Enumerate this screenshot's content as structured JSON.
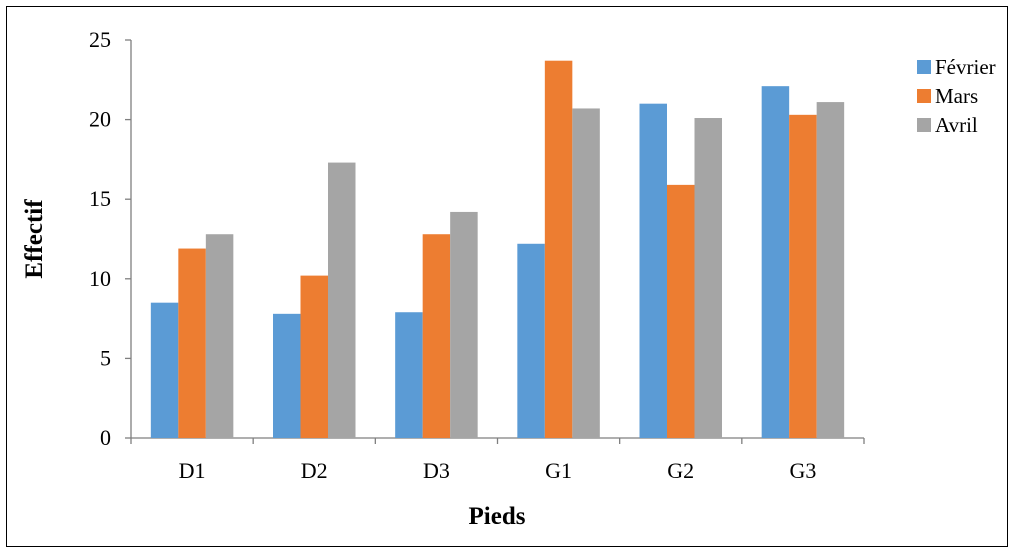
{
  "chart_data": {
    "type": "bar",
    "title": "",
    "xlabel": "Pieds",
    "ylabel": "Effectif",
    "categories": [
      "D1",
      "D2",
      "D3",
      "G1",
      "G2",
      "G3"
    ],
    "series": [
      {
        "name": "Février",
        "color": "#5b9bd5",
        "values": [
          8.5,
          7.8,
          7.9,
          12.2,
          21.0,
          22.1
        ]
      },
      {
        "name": "Mars",
        "color": "#ed7d31",
        "values": [
          11.9,
          10.2,
          12.8,
          23.7,
          15.9,
          20.3
        ]
      },
      {
        "name": "Avril",
        "color": "#a5a5a5",
        "values": [
          12.8,
          17.3,
          14.2,
          20.7,
          20.1,
          21.1
        ]
      }
    ],
    "ylim": [
      0,
      25
    ],
    "yticks": [
      0,
      5,
      10,
      15,
      20,
      25
    ],
    "grid": false,
    "legend_position": "right"
  }
}
